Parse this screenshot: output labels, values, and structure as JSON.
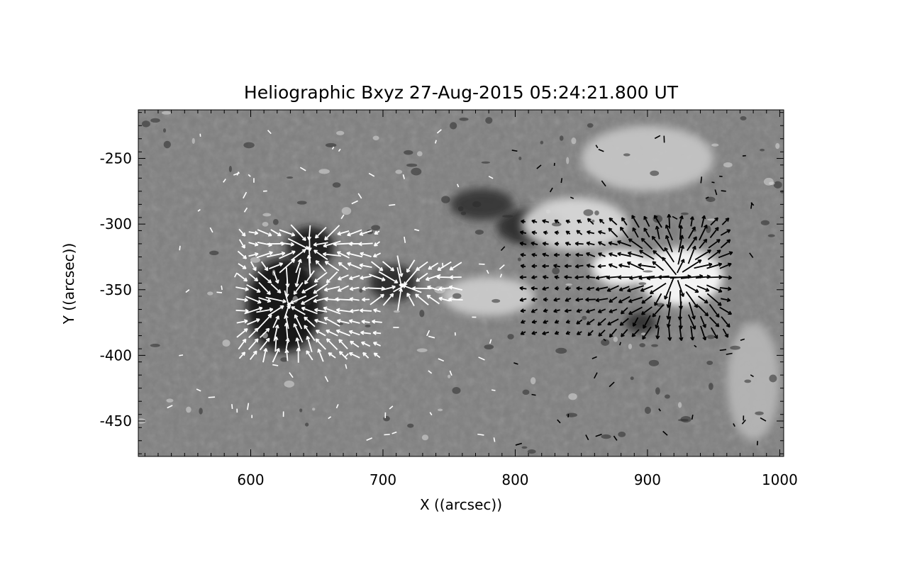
{
  "chart_data": {
    "type": "vector_field_image",
    "title": "Heliographic Bxyz 27-Aug-2015 05:24:21.800 UT",
    "xlabel": "X ((arcsec))",
    "ylabel": "Y ((arcsec))",
    "xlim": [
      515,
      1003
    ],
    "ylim": [
      -477,
      -213
    ],
    "xticks": [
      600,
      700,
      800,
      900,
      1000
    ],
    "xtick_labels": [
      "600",
      "700",
      "800",
      "900",
      "1000"
    ],
    "yticks": [
      -250,
      -300,
      -350,
      -400,
      -450
    ],
    "ytick_labels": [
      "-250",
      "-300",
      "-350",
      "-400",
      "-450"
    ],
    "background": {
      "description": "grayscale magnetogram of Bz",
      "base_color": "#7f7f7f",
      "features": [
        {
          "polarity": "negative",
          "shade": "#101010",
          "center": [
            625,
            -362
          ],
          "radius": [
            28,
            36
          ]
        },
        {
          "polarity": "negative",
          "shade": "#151515",
          "center": [
            645,
            -318
          ],
          "radius": [
            18,
            16
          ]
        },
        {
          "polarity": "negative",
          "shade": "#262626",
          "center": [
            708,
            -345
          ],
          "radius": [
            18,
            14
          ]
        },
        {
          "polarity": "negative",
          "shade": "#2a2a2a",
          "center": [
            812,
            -302
          ],
          "radius": [
            26,
            14
          ]
        },
        {
          "polarity": "negative",
          "shade": "#333333",
          "center": [
            775,
            -285
          ],
          "radius": [
            24,
            12
          ]
        },
        {
          "polarity": "negative",
          "shade": "#2e2e2e",
          "center": [
            895,
            -375
          ],
          "radius": [
            12,
            8
          ]
        },
        {
          "polarity": "positive",
          "shade": "#ffffff",
          "center": [
            880,
            -333
          ],
          "radius": [
            22,
            14
          ]
        },
        {
          "polarity": "positive",
          "shade": "#ffffff",
          "center": [
            925,
            -340
          ],
          "radius": [
            32,
            22
          ]
        },
        {
          "polarity": "positive",
          "shade": "#dcdcdc",
          "center": [
            845,
            -300
          ],
          "radius": [
            40,
            20
          ]
        },
        {
          "polarity": "positive",
          "shade": "#cfcfcf",
          "center": [
            780,
            -355
          ],
          "radius": [
            35,
            15
          ]
        },
        {
          "polarity": "positive",
          "shade": "#c8c8c8",
          "center": [
            900,
            -250
          ],
          "radius": [
            50,
            25
          ]
        },
        {
          "polarity": "positive",
          "shade": "#b8b8b8",
          "center": [
            980,
            -420
          ],
          "radius": [
            20,
            45
          ]
        }
      ]
    },
    "vector_sources": [
      {
        "name": "left-negative-spot",
        "center": [
          628,
          -362
        ],
        "color": "#ffffff",
        "sign": -1,
        "extent": [
          [
            590,
            700
          ],
          [
            -400,
            -300
          ]
        ]
      },
      {
        "name": "left-upper-spot",
        "center": [
          645,
          -318
        ],
        "color": "#ffffff",
        "sign": -1,
        "extent": [
          [
            600,
            690
          ],
          [
            -340,
            -300
          ]
        ]
      },
      {
        "name": "middle-spot",
        "center": [
          715,
          -347
        ],
        "color": "#ffffff",
        "sign": -1,
        "extent": [
          [
            690,
            755
          ],
          [
            -365,
            -330
          ]
        ]
      },
      {
        "name": "right-positive-spot",
        "center": [
          922,
          -340
        ],
        "color": "#000000",
        "sign": 1,
        "extent": [
          [
            800,
            965
          ],
          [
            -385,
            -295
          ]
        ]
      }
    ]
  }
}
